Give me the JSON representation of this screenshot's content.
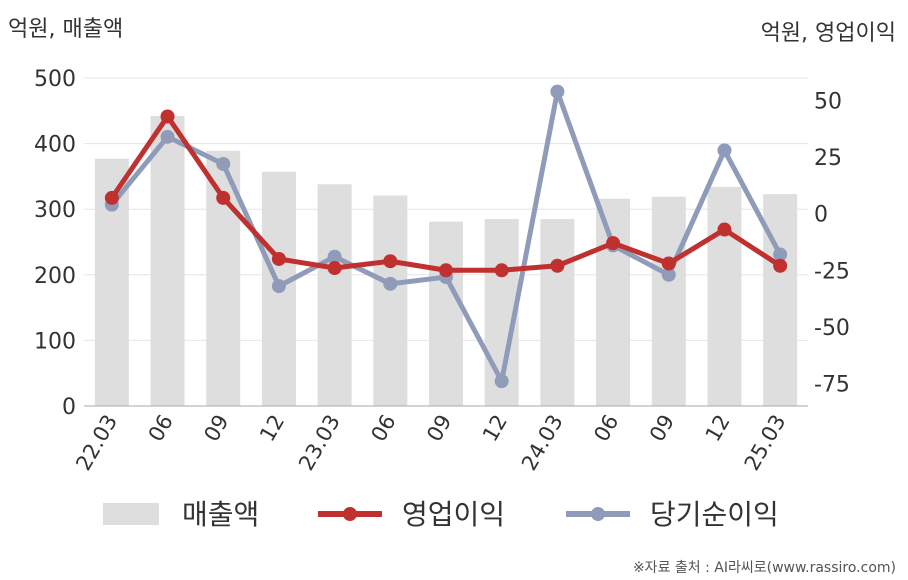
{
  "chart_data": {
    "type": "bar+line",
    "categories": [
      "22.03",
      "06",
      "09",
      "12",
      "23.03",
      "06",
      "09",
      "12",
      "24.03",
      "06",
      "09",
      "12",
      "25.03"
    ],
    "series": [
      {
        "name": "매출액",
        "type": "bar",
        "axis": "left",
        "color": "#dedede",
        "values": [
          377,
          442,
          389,
          357,
          338,
          321,
          281,
          285,
          285,
          316,
          319,
          334,
          323
        ]
      },
      {
        "name": "영업이익",
        "type": "line",
        "axis": "right",
        "color": "#c0302f",
        "values": [
          7,
          43,
          7,
          -20,
          -24,
          -21,
          -25,
          -25,
          -23,
          -13,
          -22,
          -7,
          -23
        ]
      },
      {
        "name": "당기순이익",
        "type": "line",
        "axis": "right",
        "color": "#8f9bb8",
        "values": [
          4,
          34,
          22,
          -32,
          -19,
          -31,
          -28,
          -74,
          54,
          -14,
          -27,
          28,
          -18
        ]
      }
    ],
    "left_axis": {
      "title": "억원, 매출액",
      "range": [
        0,
        500
      ],
      "ticks": [
        "0",
        "100",
        "200",
        "300",
        "400",
        "500"
      ]
    },
    "right_axis": {
      "title": "억원, 영업이익",
      "range": [
        -85,
        60
      ],
      "ticks": [
        "-75",
        "-50",
        "-25",
        "0",
        "25",
        "50"
      ]
    },
    "grid": true,
    "legend_position": "bottom",
    "source": "※자료 출처 : AI라씨로(www.rassiro.com)"
  }
}
